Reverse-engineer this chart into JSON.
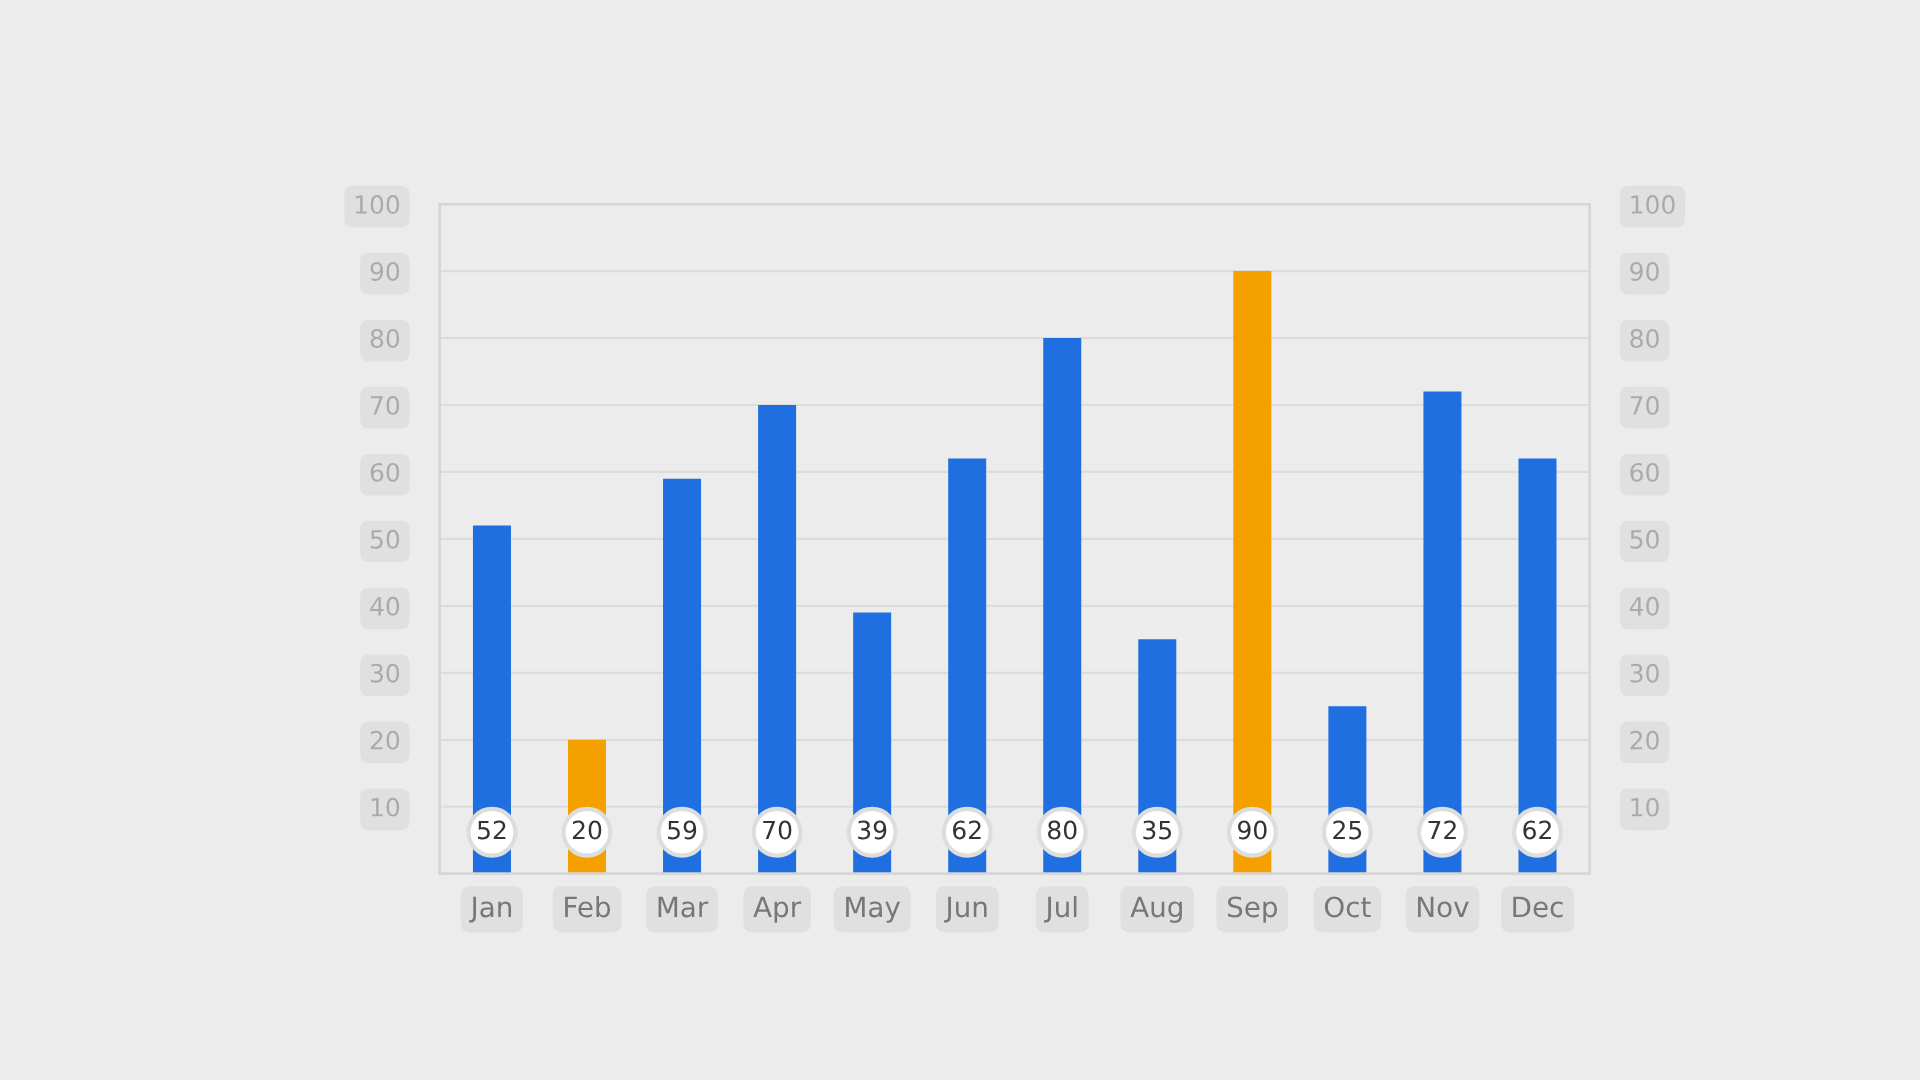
{
  "chart_data": {
    "type": "bar",
    "categories": [
      "Jan",
      "Feb",
      "Mar",
      "Apr",
      "May",
      "Jun",
      "Jul",
      "Aug",
      "Sep",
      "Oct",
      "Nov",
      "Dec"
    ],
    "values": [
      52,
      20,
      59,
      70,
      39,
      62,
      80,
      35,
      90,
      25,
      72,
      62
    ],
    "colors": [
      "#1f6fe0",
      "#f4a100",
      "#1f6fe0",
      "#1f6fe0",
      "#1f6fe0",
      "#1f6fe0",
      "#1f6fe0",
      "#1f6fe0",
      "#f4a100",
      "#1f6fe0",
      "#1f6fe0",
      "#1f6fe0"
    ],
    "ylim": [
      0,
      100
    ],
    "yticks": [
      10,
      20,
      30,
      40,
      50,
      60,
      70,
      80,
      90,
      100
    ],
    "y2lim": [
      0,
      100
    ],
    "y2ticks": [
      10,
      20,
      30,
      40,
      50,
      60,
      70,
      80,
      90,
      100
    ],
    "grid": "y",
    "data_labels": true
  }
}
